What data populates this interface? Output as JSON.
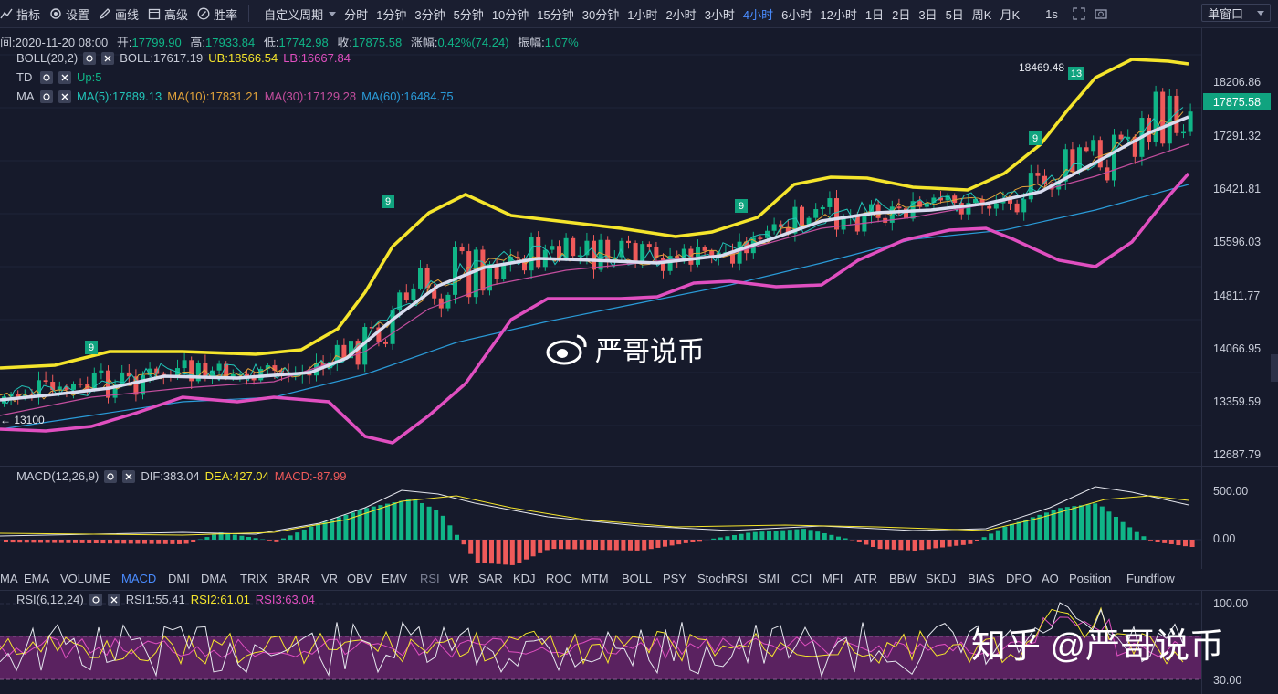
{
  "toolbar": {
    "indicators": "指标",
    "settings": "设置",
    "draw": "画线",
    "advanced": "高级",
    "winrate": "胜率",
    "custom_period": "自定义周期",
    "periods": [
      "分时",
      "1分钟",
      "3分钟",
      "5分钟",
      "10分钟",
      "15分钟",
      "30分钟",
      "1小时",
      "2小时",
      "3小时",
      "4小时",
      "6小时",
      "12小时",
      "1日",
      "2日",
      "3日",
      "5日",
      "周K",
      "月K"
    ],
    "active_period": "4小时",
    "refresh": "1s",
    "window_mode": "单窗口"
  },
  "ohlc": {
    "time": "间:2020-11-20 08:00",
    "open_label": "开:",
    "open": "17799.90",
    "high_label": "高:",
    "high": "17933.84",
    "low_label": "低:",
    "low": "17742.98",
    "close_label": "收:",
    "close": "17875.58",
    "change_label": "涨幅:",
    "change": "0.42%(74.24)",
    "amplitude_label": "振幅:",
    "amplitude": "1.07%"
  },
  "boll": {
    "name": "BOLL(20,2)",
    "mid": "BOLL:17617.19",
    "ub": "UB:18566.54",
    "lb": "LB:16667.84"
  },
  "td": {
    "name": "TD",
    "value": "Up:5"
  },
  "ma": {
    "name": "MA",
    "ma5": "MA(5):17889.13",
    "ma10": "MA(10):17831.21",
    "ma30": "MA(30):17129.28",
    "ma60": "MA(60):16484.75"
  },
  "price_axis": [
    "18206.86",
    "17291.32",
    "16421.81",
    "15596.03",
    "14811.77",
    "14066.95",
    "13359.59",
    "12687.79"
  ],
  "current_price": "17875.58",
  "max_label": "18469.48",
  "min_label": "← 13100",
  "td_labels": [
    "9",
    "9",
    "9",
    "9",
    "13"
  ],
  "macd": {
    "name": "MACD(12,26,9)",
    "dif": "DIF:383.04",
    "dea": "DEA:427.04",
    "macd": "MACD:-87.99",
    "axis": [
      "500.00",
      "0.00"
    ]
  },
  "indicator_tabs": [
    "MA",
    "EMA",
    "VOLUME",
    "MACD",
    "DMI",
    "DMA",
    "TRIX",
    "BRAR",
    "VR",
    "OBV",
    "EMV",
    "RSI",
    "WR",
    "SAR",
    "KDJ",
    "ROC",
    "MTM",
    "BOLL",
    "PSY",
    "StochRSI",
    "SMI",
    "CCI",
    "MFI",
    "ATR",
    "BBW",
    "SKDJ",
    "BIAS",
    "DPO",
    "AO",
    "Position",
    "Fundflow"
  ],
  "active_tab": "MACD",
  "rsi": {
    "name": "RSI(6,12,24)",
    "rsi1": "RSI1:55.41",
    "rsi2": "RSI2:61.01",
    "rsi3": "RSI3:63.04",
    "axis": [
      "100.00",
      "30.00"
    ]
  },
  "watermark_center": "严哥说币",
  "watermark_corner": "知乎 @严哥说币",
  "colors": {
    "up": "#10b587",
    "down": "#ef5a5a",
    "boll": "#f5e52c",
    "lb": "#e04fc0",
    "mid": "#d8dcef",
    "ma60": "#2a9bd8",
    "ma30": "#c44e9e",
    "ma10": "#e0a23a",
    "ma5": "#22c4b8",
    "active": "#4a8cff"
  }
}
